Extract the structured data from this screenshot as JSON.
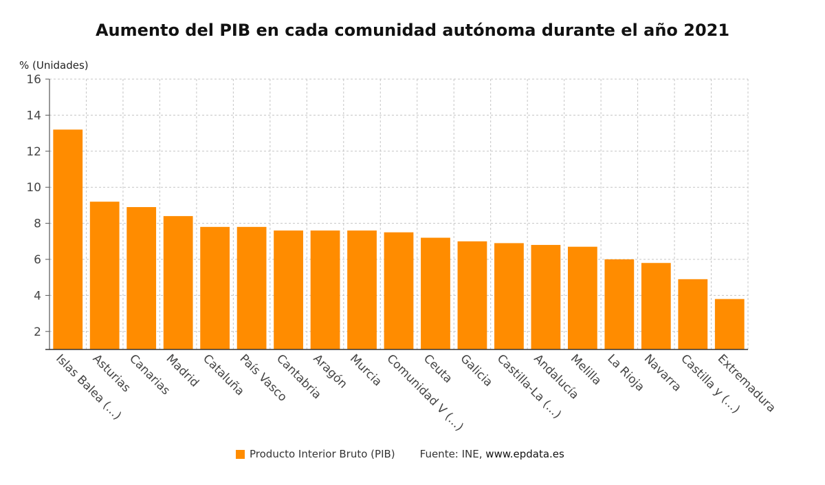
{
  "chart_data": {
    "type": "bar",
    "title": "Aumento del PIB en cada comunidad autónoma durante el año 2021",
    "ylabel": "% (Unidades)",
    "xlabel": "",
    "ylim": [
      1,
      16
    ],
    "yticks": [
      2,
      4,
      6,
      8,
      10,
      12,
      14,
      16
    ],
    "grid": true,
    "categories": [
      "Islas Balea (...)",
      "Asturias",
      "Canarias",
      "Madrid",
      "Cataluña",
      "País Vasco",
      "Cantabria",
      "Aragón",
      "Murcia",
      "Comunidad V (...)",
      "Ceuta",
      "Galicia",
      "Castilla-La (...)",
      "Andalucía",
      "Melilla",
      "La Rioja",
      "Navarra",
      "Castilla y (...)",
      "Extremadura"
    ],
    "series": [
      {
        "name": "Producto Interior Bruto (PIB)",
        "color": "#ff8c00",
        "values": [
          13.2,
          9.2,
          8.9,
          8.4,
          7.8,
          7.8,
          7.6,
          7.6,
          7.6,
          7.5,
          7.2,
          7.0,
          6.9,
          6.8,
          6.7,
          6.0,
          5.8,
          4.9,
          3.8
        ]
      }
    ],
    "legend_position": "bottom"
  },
  "source": {
    "label": "Fuente: INE,",
    "site": "www.epdata.es"
  }
}
